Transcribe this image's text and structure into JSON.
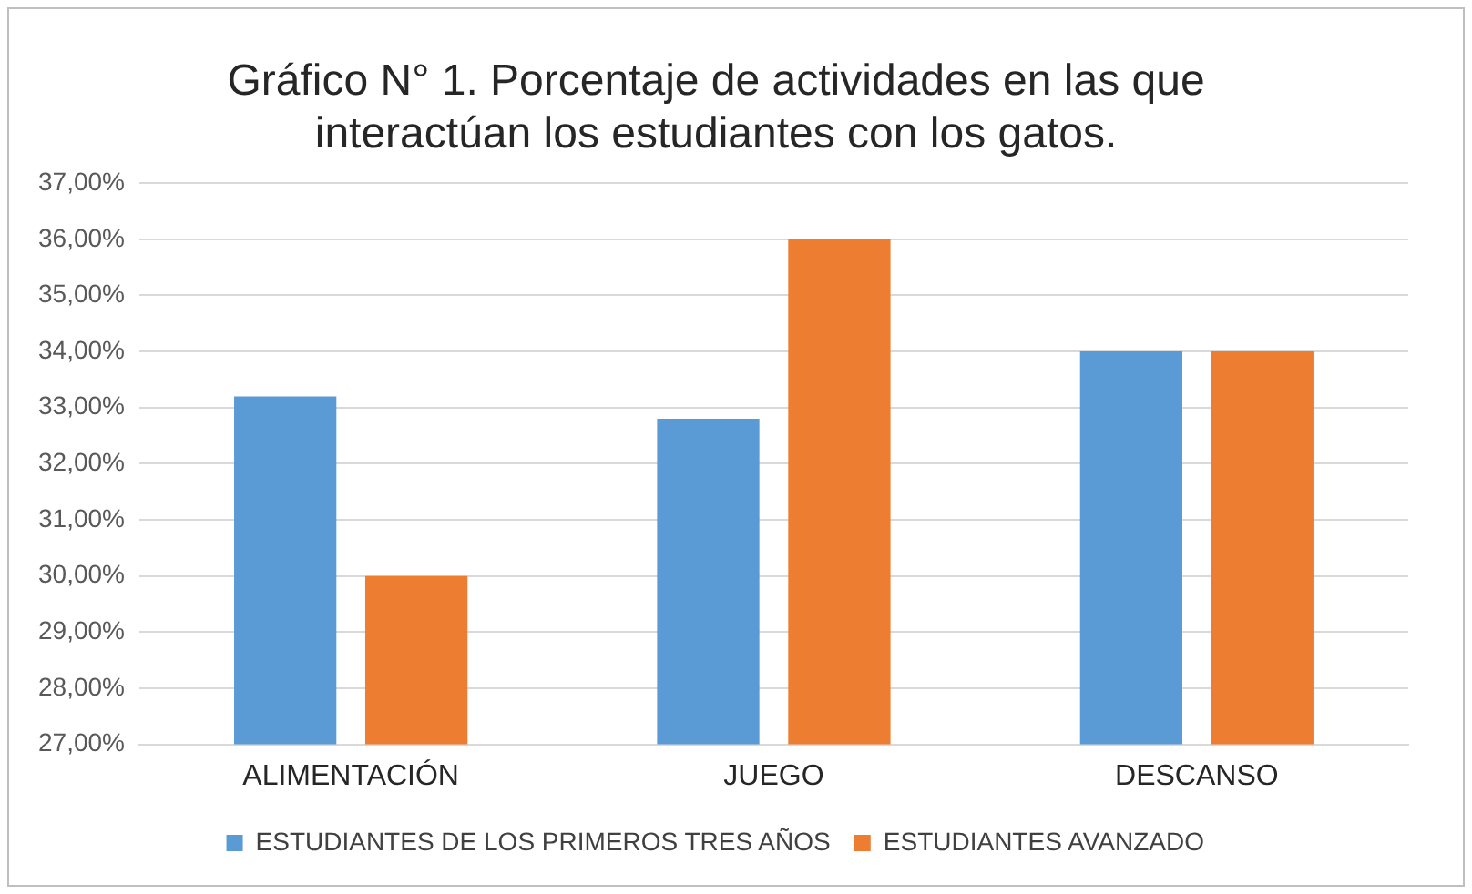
{
  "chart_data": {
    "type": "bar",
    "title": [
      "Gráfico N° 1. Porcentaje de actividades en las que",
      "interactúan los estudiantes con los gatos."
    ],
    "categories": [
      "ALIMENTACIÓN",
      "JUEGO",
      "DESCANSO"
    ],
    "series": [
      {
        "name": "ESTUDIANTES DE LOS PRIMEROS TRES AÑOS",
        "color": "#5b9bd5",
        "values": [
          33.2,
          32.8,
          34.0
        ]
      },
      {
        "name": "ESTUDIANTES AVANZADO",
        "color": "#ed7d31",
        "values": [
          30.0,
          36.0,
          34.0
        ]
      }
    ],
    "ylim": [
      27,
      37
    ],
    "yticks": [
      {
        "value": 27,
        "label": "27,00%"
      },
      {
        "value": 28,
        "label": "28,00%"
      },
      {
        "value": 29,
        "label": "29,00%"
      },
      {
        "value": 30,
        "label": "30,00%"
      },
      {
        "value": 31,
        "label": "31,00%"
      },
      {
        "value": 32,
        "label": "32,00%"
      },
      {
        "value": 33,
        "label": "33,00%"
      },
      {
        "value": 34,
        "label": "34,00%"
      },
      {
        "value": 35,
        "label": "35,00%"
      },
      {
        "value": 36,
        "label": "36,00%"
      },
      {
        "value": 37,
        "label": "37,00%"
      }
    ],
    "grid": "y",
    "legend": "bottom"
  }
}
